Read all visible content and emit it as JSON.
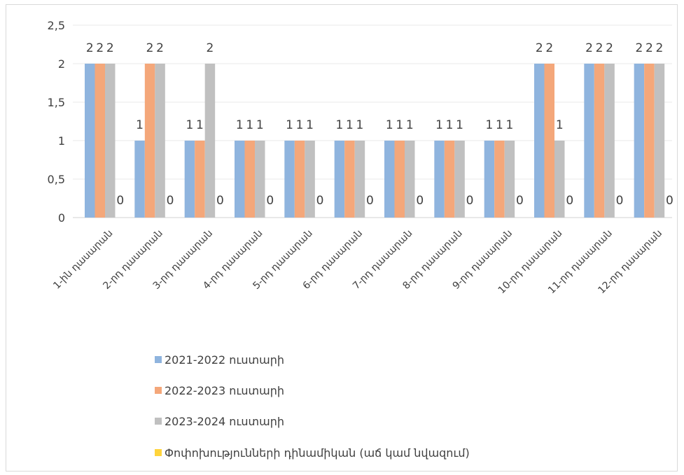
{
  "chart_data": {
    "type": "bar",
    "ylim": [
      0,
      2.5
    ],
    "yticks": [
      "0",
      "0,5",
      "1",
      "1,5",
      "2",
      "2,5"
    ],
    "grid": true,
    "legend_position": "bottom",
    "categories": [
      "1-ին դասարան",
      "2-րդ դասարան",
      "3-րդ դասարան",
      "4-րդ դասարան",
      "5-րդ դասարան",
      "6-րդ դասարան",
      "7-րդ դասարան",
      "8-րդ դասարան",
      "9-րդ դասարան",
      "10-րդ դասարան",
      "11-րդ դասարան",
      "12-րդ դասարան"
    ],
    "series": [
      {
        "name": "2021-2022 ուստարի",
        "color": "#8fb4de",
        "values": [
          2,
          1,
          1,
          1,
          1,
          1,
          1,
          1,
          1,
          2,
          2,
          2
        ]
      },
      {
        "name": "2022-2023 ուստարի",
        "color": "#f4a77a",
        "values": [
          2,
          2,
          1,
          1,
          1,
          1,
          1,
          1,
          1,
          2,
          2,
          2
        ]
      },
      {
        "name": "2023-2024 ուստարի",
        "color": "#c0c0c0",
        "values": [
          2,
          2,
          2,
          1,
          1,
          1,
          1,
          1,
          1,
          1,
          2,
          2
        ]
      },
      {
        "name": "Փոփոխությունների դինամիկան  (աճ կամ նվազում)",
        "color": "#ffd43b",
        "values": [
          0,
          0,
          0,
          0,
          0,
          0,
          0,
          0,
          0,
          0,
          0,
          0
        ]
      }
    ],
    "data_labels": [
      [
        "2",
        "2",
        "2",
        "0"
      ],
      [
        "1",
        "2",
        "2",
        "0"
      ],
      [
        "1",
        "1",
        "2",
        "0"
      ],
      [
        "1",
        "1",
        "1",
        "0"
      ],
      [
        "1",
        "1",
        "1",
        "0"
      ],
      [
        "1",
        "1",
        "1",
        "0"
      ],
      [
        "1",
        "1",
        "1",
        "0"
      ],
      [
        "1",
        "1",
        "1",
        "0"
      ],
      [
        "1",
        "1",
        "1",
        "0"
      ],
      [
        "2",
        "2",
        "1",
        "0"
      ],
      [
        "2",
        "2",
        "2",
        "0"
      ],
      [
        "2",
        "2",
        "2",
        "0"
      ]
    ]
  }
}
